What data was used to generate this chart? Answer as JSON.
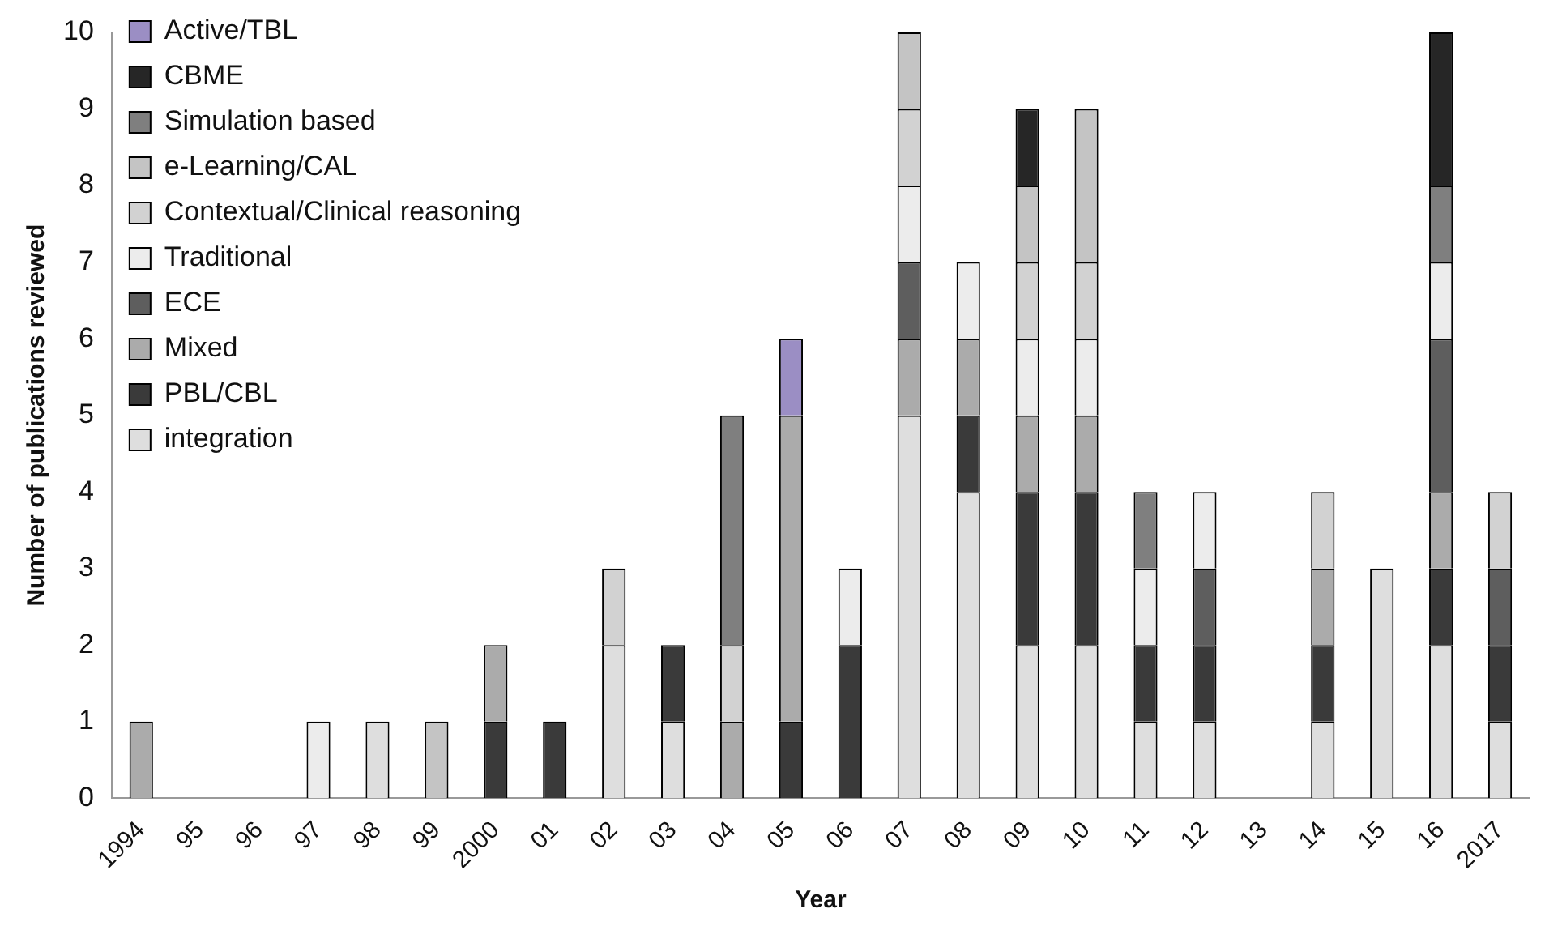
{
  "chart_data": {
    "type": "bar",
    "stacked": true,
    "xlabel": "Year",
    "ylabel": "Number of publications reviewed",
    "categories": [
      "1994",
      "95",
      "96",
      "97",
      "98",
      "99",
      "2000",
      "01",
      "02",
      "03",
      "04",
      "05",
      "06",
      "07",
      "08",
      "09",
      "10",
      "11",
      "12",
      "13",
      "14",
      "15",
      "16",
      "2017"
    ],
    "ylim": [
      0,
      10
    ],
    "yticks": [
      0,
      1,
      2,
      3,
      4,
      5,
      6,
      7,
      8,
      9,
      10
    ],
    "grid": false,
    "legend": "top left",
    "series": [
      {
        "name": "integration",
        "color": "#dedede",
        "values": [
          null,
          null,
          null,
          null,
          1,
          null,
          null,
          null,
          2,
          1,
          null,
          null,
          null,
          5,
          4,
          2,
          2,
          1,
          1,
          null,
          1,
          3,
          2,
          1
        ]
      },
      {
        "name": "PBL/CBL",
        "color": "#3a3a3a",
        "values": [
          null,
          null,
          null,
          null,
          null,
          null,
          1,
          1,
          null,
          1,
          null,
          1,
          2,
          null,
          1,
          2,
          2,
          1,
          1,
          null,
          1,
          null,
          1,
          1
        ]
      },
      {
        "name": "Mixed",
        "color": "#ababab",
        "values": [
          1,
          null,
          null,
          null,
          null,
          null,
          1,
          null,
          null,
          null,
          1,
          4,
          null,
          1,
          1,
          1,
          1,
          null,
          null,
          null,
          1,
          null,
          1,
          null
        ]
      },
      {
        "name": "ECE",
        "color": "#5e5e5e",
        "values": [
          null,
          null,
          null,
          null,
          null,
          null,
          null,
          null,
          null,
          null,
          null,
          null,
          null,
          1,
          null,
          null,
          null,
          null,
          1,
          null,
          null,
          null,
          2,
          1
        ]
      },
      {
        "name": "Traditional",
        "color": "#ececec",
        "values": [
          null,
          null,
          null,
          1,
          null,
          null,
          null,
          null,
          null,
          null,
          null,
          null,
          1,
          1,
          1,
          1,
          1,
          1,
          1,
          null,
          null,
          null,
          1,
          null
        ]
      },
      {
        "name": "Contextual/Clinical reasoning",
        "color": "#d2d2d2",
        "values": [
          null,
          null,
          null,
          null,
          null,
          null,
          null,
          null,
          1,
          null,
          1,
          null,
          null,
          1,
          null,
          1,
          1,
          null,
          null,
          null,
          1,
          null,
          null,
          1
        ]
      },
      {
        "name": "e-Learning/CAL",
        "color": "#c4c4c4",
        "values": [
          null,
          null,
          null,
          null,
          null,
          1,
          null,
          null,
          null,
          null,
          null,
          null,
          null,
          1,
          null,
          1,
          2,
          null,
          null,
          null,
          null,
          null,
          null,
          null
        ]
      },
      {
        "name": "Simulation based",
        "color": "#7f7f7f",
        "values": [
          null,
          null,
          null,
          null,
          null,
          null,
          null,
          null,
          null,
          null,
          3,
          null,
          null,
          null,
          null,
          null,
          null,
          1,
          null,
          null,
          null,
          null,
          1,
          null
        ]
      },
      {
        "name": "CBME",
        "color": "#262626",
        "values": [
          null,
          null,
          null,
          null,
          null,
          null,
          null,
          null,
          null,
          null,
          null,
          null,
          null,
          null,
          null,
          1,
          null,
          null,
          null,
          null,
          null,
          null,
          2,
          null
        ]
      },
      {
        "name": "Active/TBL",
        "color": "#9b8ec4",
        "values": [
          null,
          null,
          null,
          null,
          null,
          null,
          null,
          null,
          null,
          null,
          null,
          1,
          null,
          null,
          null,
          null,
          null,
          null,
          null,
          null,
          null,
          null,
          null,
          null
        ]
      }
    ]
  }
}
